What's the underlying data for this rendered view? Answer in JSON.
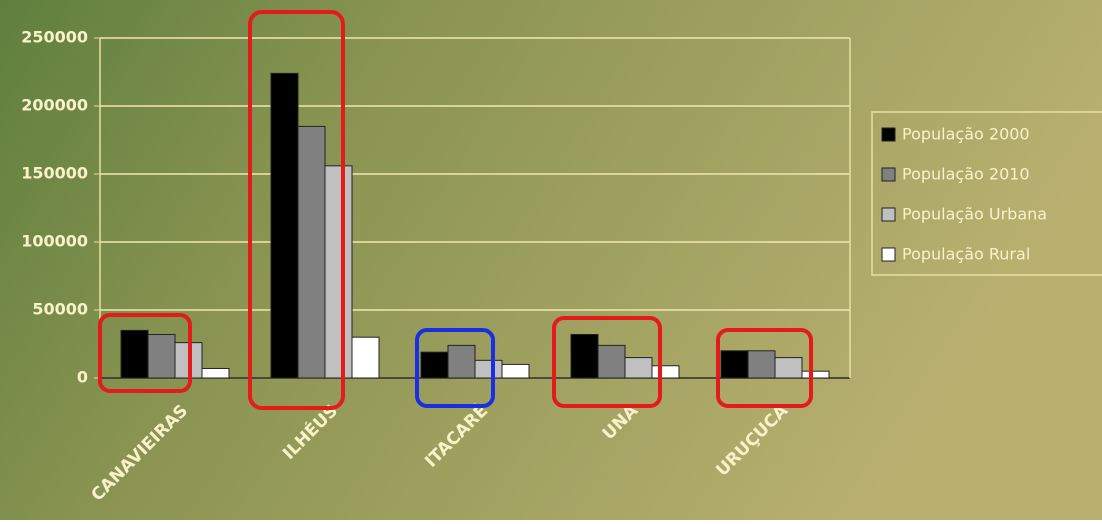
{
  "chart_data": {
    "type": "bar",
    "categories": [
      "CANAVIEIRAS",
      "ILHÉUS",
      "ITACARÉ",
      "UNA",
      "URUÇUCA"
    ],
    "series": [
      {
        "name": "População 2000",
        "color": "#000000",
        "values": [
          35000,
          224000,
          19000,
          32000,
          20000
        ]
      },
      {
        "name": "População 2010",
        "color": "#808080",
        "values": [
          32000,
          185000,
          24000,
          24000,
          20000
        ]
      },
      {
        "name": "População Urbana",
        "color": "#c0c0c0",
        "values": [
          26000,
          156000,
          13000,
          15000,
          15000
        ]
      },
      {
        "name": "População Rural",
        "color": "#ffffff",
        "values": [
          7000,
          30000,
          10000,
          9000,
          5000
        ]
      }
    ],
    "ylim": [
      0,
      250000
    ],
    "yticks": [
      0,
      50000,
      100000,
      150000,
      200000,
      250000
    ],
    "grid": true,
    "legend": "right"
  }
}
